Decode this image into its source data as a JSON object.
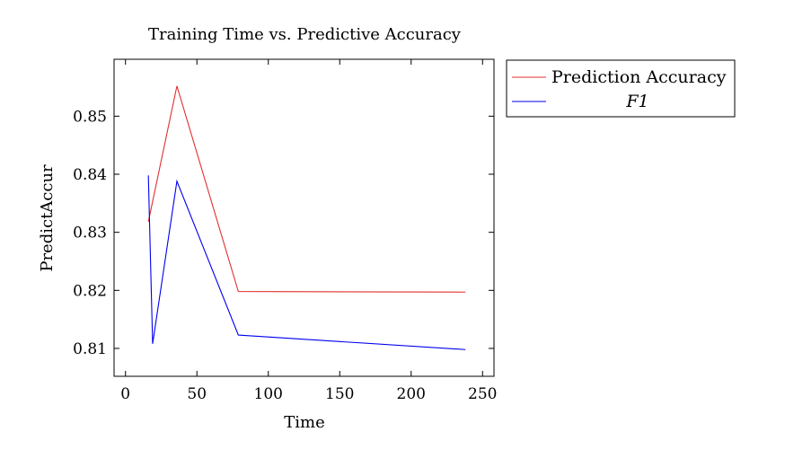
{
  "chart_data": {
    "type": "line",
    "title": "Training Time vs. Predictive Accuracy",
    "xlabel": "Time",
    "ylabel": "PredictAccur",
    "xlim": [
      -8,
      258
    ],
    "ylim": [
      0.8052,
      0.8598
    ],
    "xticks": [
      0,
      50,
      100,
      150,
      200,
      250
    ],
    "xtick_labels": [
      "0",
      "50",
      "100",
      "150",
      "200",
      "250"
    ],
    "yticks": [
      0.81,
      0.82,
      0.83,
      0.84,
      0.85
    ],
    "ytick_labels": [
      "0.81",
      "0.82",
      "0.83",
      "0.84",
      "0.85"
    ],
    "grid": false,
    "legend_position": "outside-right-top",
    "series": [
      {
        "name": "Prediction Accuracy",
        "color": "#e03030",
        "x": [
          16,
          36,
          79,
          238
        ],
        "y": [
          0.8318,
          0.8552,
          0.8198,
          0.8197
        ]
      },
      {
        "name": "F1",
        "color": "#0000ee",
        "x": [
          16,
          19,
          36,
          79,
          238
        ],
        "y": [
          0.8398,
          0.8108,
          0.8388,
          0.8123,
          0.8098
        ]
      }
    ]
  }
}
